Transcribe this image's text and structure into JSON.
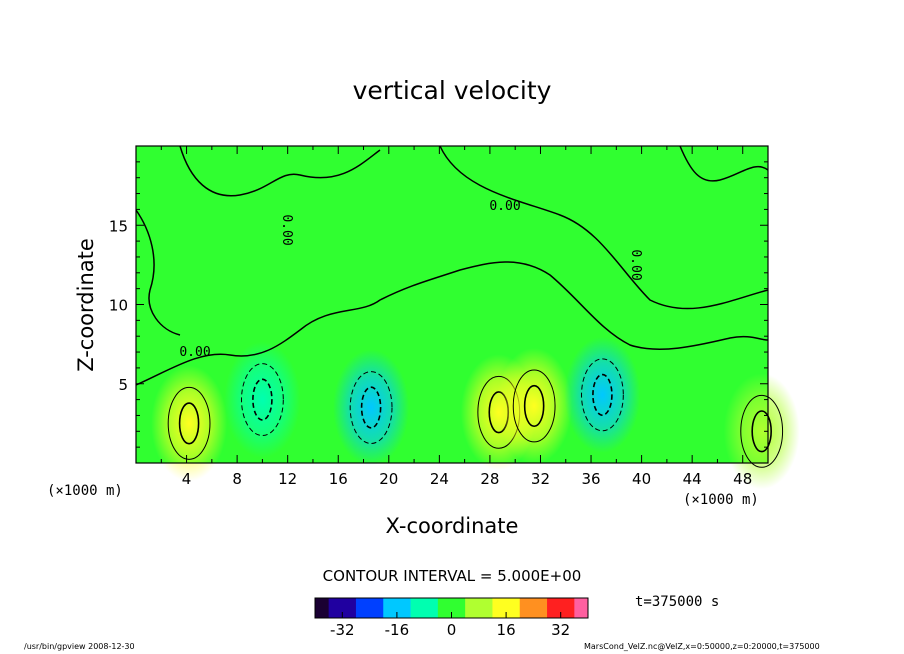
{
  "chart_data": {
    "type": "heatmap",
    "title": "vertical velocity",
    "xlabel": "X-coordinate",
    "ylabel": "Z-coordinate",
    "x_unit_label": "(×1000 m)",
    "xlim": [
      0,
      50
    ],
    "ylim": [
      0,
      20
    ],
    "x_ticks": [
      4,
      8,
      12,
      16,
      20,
      24,
      28,
      32,
      36,
      40,
      44,
      48
    ],
    "y_ticks": [
      5,
      10,
      15
    ],
    "contour_interval_text": "CONTOUR INTERVAL = 5.000E+00",
    "contour_label": "0.00",
    "colorbar": {
      "range": [
        -40,
        40
      ],
      "ticks": [
        -32,
        -16,
        0,
        16,
        32
      ],
      "colors": [
        "#1a0033",
        "#2000a0",
        "#0040ff",
        "#00c8ff",
        "#00ffb0",
        "#30ff30",
        "#b0ff30",
        "#ffff20",
        "#ff9020",
        "#ff2020",
        "#ff60a0"
      ]
    },
    "features": [
      {
        "kind": "updraft",
        "x": 4.2,
        "z": 2.5,
        "peak": 12
      },
      {
        "kind": "downdraft",
        "x": 10.0,
        "z": 4.0,
        "peak": -12
      },
      {
        "kind": "downdraft",
        "x": 18.6,
        "z": 3.5,
        "peak": -16
      },
      {
        "kind": "updraft",
        "x": 28.7,
        "z": 3.2,
        "peak": 13
      },
      {
        "kind": "updraft",
        "x": 31.5,
        "z": 3.6,
        "peak": 12
      },
      {
        "kind": "downdraft",
        "x": 36.9,
        "z": 4.3,
        "peak": -14
      },
      {
        "kind": "updraft",
        "x": 49.5,
        "z": 2.0,
        "peak": 9
      }
    ],
    "time_label": "t=375000 s"
  },
  "footer": {
    "left": "/usr/bin/gpview   2008-12-30",
    "right": "MarsCond_VelZ.nc@VelZ,x=0:50000,z=0:20000,t=375000"
  }
}
